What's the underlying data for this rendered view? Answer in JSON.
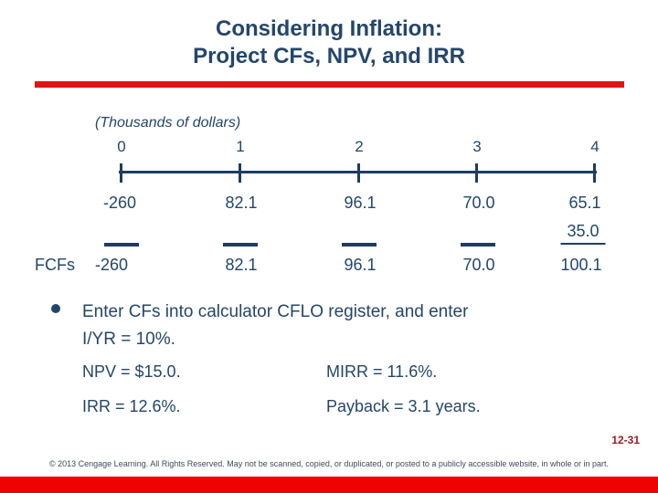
{
  "slide": {
    "title_line1": "Considering Inflation:",
    "title_line2": "Project CFs, NPV, and IRR"
  },
  "timeline": {
    "caption": "(Thousands of dollars)",
    "ticks": [
      "0",
      "1",
      "2",
      "3",
      "4"
    ],
    "cash_flows": [
      "-260",
      "82.1",
      "96.1",
      "70.0",
      "65.1"
    ],
    "terminal_addition": "35.0",
    "fcf_label": "FCFs",
    "fcf_values": [
      "-260",
      "82.1",
      "96.1",
      "70.0",
      "100.1"
    ]
  },
  "bullet": {
    "line1": "Enter CFs into calculator CFLO register, and enter",
    "line2": "I/YR = 10%."
  },
  "results": {
    "npv": "NPV = $15.0.",
    "mirr": "MIRR = 11.6%.",
    "irr": "IRR = 12.6%.",
    "payback": "Payback = 3.1 years."
  },
  "footer": {
    "page_number": "12-31",
    "copyright": "© 2013 Cengage Learning. All Rights Reserved. May not be scanned, copied, or duplicated, or posted to a publicly accessible website, in whole or in part."
  },
  "colors": {
    "text_navy": "#24466B",
    "timeline_navy": "#1F3C61",
    "divider_red": "#E01414",
    "bottom_bar_red": "#EE0202",
    "page_number_red": "#9B1B1E"
  }
}
